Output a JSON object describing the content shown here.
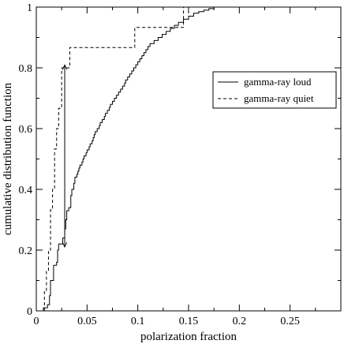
{
  "chart_data": {
    "type": "line",
    "subtype": "step",
    "title": "",
    "xlabel": "polarization fraction",
    "ylabel": "cumulative distribution function",
    "xlim": [
      0,
      0.3
    ],
    "ylim": [
      0,
      1
    ],
    "x_ticks": [
      0,
      0.05,
      0.1,
      0.15,
      0.2,
      0.25
    ],
    "x_tick_labels": [
      "0",
      "0.05",
      "0.1",
      "0.15",
      "0.2",
      "0.25"
    ],
    "y_ticks": [
      0,
      0.2,
      0.4,
      0.6,
      0.8,
      1
    ],
    "y_tick_labels": [
      "0",
      "0.2",
      "0.4",
      "0.6",
      "0.8",
      "1"
    ],
    "grid": false,
    "legend": {
      "placement": "right-middle"
    },
    "series": [
      {
        "name": "gamma-ray loud",
        "line_style": "solid",
        "color": "#000000",
        "x": [
          0.007,
          0.011,
          0.013,
          0.014,
          0.017,
          0.02,
          0.021,
          0.022,
          0.026,
          0.028,
          0.029,
          0.03,
          0.032,
          0.034,
          0.035,
          0.037,
          0.038,
          0.04,
          0.041,
          0.042,
          0.043,
          0.045,
          0.046,
          0.047,
          0.049,
          0.05,
          0.052,
          0.053,
          0.055,
          0.056,
          0.057,
          0.058,
          0.06,
          0.062,
          0.063,
          0.065,
          0.067,
          0.068,
          0.07,
          0.072,
          0.073,
          0.075,
          0.077,
          0.079,
          0.081,
          0.083,
          0.085,
          0.087,
          0.088,
          0.09,
          0.092,
          0.094,
          0.096,
          0.098,
          0.1,
          0.102,
          0.104,
          0.106,
          0.108,
          0.11,
          0.112,
          0.116,
          0.12,
          0.124,
          0.128,
          0.132,
          0.136,
          0.14,
          0.145,
          0.15,
          0.155,
          0.16,
          0.165,
          0.17,
          0.175,
          0.18,
          0.185,
          0.19,
          0.195,
          0.2,
          0.205,
          0.21,
          0.215,
          0.22,
          0.228,
          0.236,
          0.245,
          0.255
        ],
        "y": [
          0.01,
          0.02,
          0.05,
          0.1,
          0.15,
          0.16,
          0.2,
          0.22,
          0.24,
          0.27,
          0.3,
          0.33,
          0.34,
          0.38,
          0.4,
          0.42,
          0.44,
          0.45,
          0.46,
          0.47,
          0.48,
          0.49,
          0.5,
          0.51,
          0.52,
          0.53,
          0.54,
          0.55,
          0.56,
          0.57,
          0.58,
          0.59,
          0.6,
          0.61,
          0.62,
          0.63,
          0.64,
          0.65,
          0.66,
          0.67,
          0.68,
          0.69,
          0.7,
          0.71,
          0.72,
          0.73,
          0.74,
          0.75,
          0.76,
          0.77,
          0.78,
          0.79,
          0.8,
          0.81,
          0.82,
          0.83,
          0.84,
          0.85,
          0.86,
          0.87,
          0.88,
          0.89,
          0.9,
          0.91,
          0.92,
          0.93,
          0.94,
          0.95,
          0.96,
          0.97,
          0.98,
          0.985,
          0.99,
          0.995,
          1,
          1,
          1,
          1,
          1,
          1,
          1,
          1,
          1,
          1,
          1,
          1,
          1,
          1
        ]
      },
      {
        "name": "gamma-ray quiet",
        "line_style": "dashed",
        "color": "#000000",
        "x": [
          0.008,
          0.01,
          0.012,
          0.014,
          0.016,
          0.018,
          0.02,
          0.022,
          0.025,
          0.033,
          0.097,
          0.145,
          0.148
        ],
        "y": [
          0.067,
          0.133,
          0.2,
          0.333,
          0.4,
          0.533,
          0.6,
          0.667,
          0.8,
          0.867,
          0.933,
          1,
          1
        ]
      }
    ],
    "annotations": [
      {
        "type": "double-arrow",
        "x": 0.028,
        "y_from": 0.21,
        "y_to": 0.81
      }
    ]
  }
}
